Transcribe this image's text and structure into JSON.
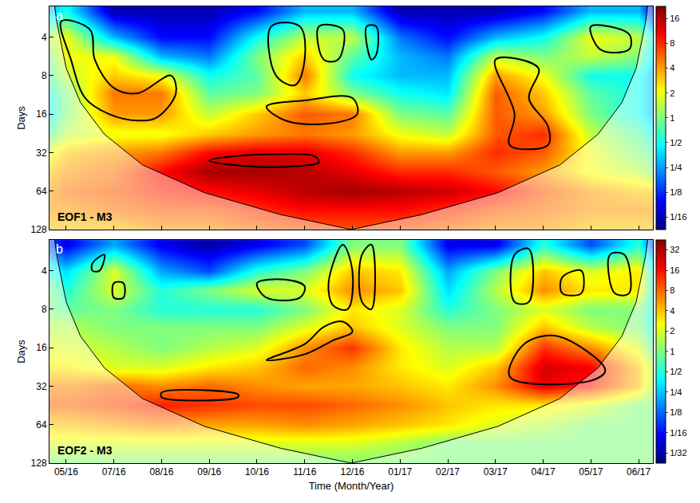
{
  "chart_data": [
    {
      "type": "heatmap",
      "panel": "a",
      "label": "EOF1 - M3",
      "y_label": "Days",
      "log": true,
      "tick_labels": "y",
      "x": [
        -0.35,
        0,
        1,
        2,
        3,
        4,
        5,
        6,
        7,
        8,
        9,
        10,
        11,
        12,
        12.3
      ],
      "y": [
        2.5,
        4,
        5.7,
        8,
        11,
        16,
        23,
        32,
        45,
        64,
        90,
        128
      ],
      "cells": [
        [
          0.3,
          0.5,
          0.06,
          0.06,
          0.06,
          0.1,
          0.3,
          0.3,
          0.06,
          0.06,
          0.06,
          0.1,
          0.3,
          0.3,
          0.1
        ],
        [
          1.5,
          2,
          0.3,
          0.1,
          0.1,
          0.5,
          1.5,
          1.5,
          0.2,
          0.1,
          0.3,
          0.5,
          2,
          1.5,
          0.5
        ],
        [
          1,
          2,
          2,
          0.3,
          0.2,
          1,
          3,
          0.8,
          0.3,
          0.2,
          1.5,
          1,
          1.5,
          1,
          0.4
        ],
        [
          0.8,
          1.5,
          3,
          2,
          0.5,
          0.8,
          5,
          0.5,
          0.3,
          0.3,
          4,
          2,
          0.5,
          0.5,
          0.3
        ],
        [
          0.6,
          1,
          5,
          5,
          0.8,
          1,
          3,
          1,
          0.5,
          0.4,
          6,
          3,
          0.8,
          0.5,
          0.3
        ],
        [
          0.5,
          1,
          4,
          4,
          1.5,
          3,
          6,
          5,
          1,
          0.8,
          6,
          4,
          1,
          0.5,
          0.3
        ],
        [
          0.8,
          1.5,
          2,
          2,
          3,
          4,
          5,
          4,
          2,
          1.5,
          6,
          8,
          1.5,
          0.8,
          0.5
        ],
        [
          2,
          3,
          4,
          5,
          10,
          12,
          12,
          8,
          4,
          4,
          8,
          6,
          2,
          1,
          0.8
        ],
        [
          3,
          4,
          5,
          10,
          18,
          18,
          16,
          12,
          8,
          8,
          6,
          4,
          2,
          1.5,
          1
        ],
        [
          4,
          5,
          6,
          8,
          10,
          12,
          16,
          18,
          16,
          14,
          10,
          6,
          4,
          3,
          3
        ],
        [
          4,
          4,
          5,
          6,
          6,
          8,
          10,
          10,
          10,
          8,
          6,
          5,
          4,
          4,
          4
        ],
        [
          3,
          3,
          3,
          4,
          4,
          5,
          6,
          6,
          6,
          5,
          4,
          4,
          3,
          3,
          3
        ]
      ],
      "xlim": [
        -0.35,
        12.3
      ],
      "xticks": [
        0,
        1,
        2,
        3,
        4,
        5,
        6,
        7,
        8,
        9,
        10,
        11,
        12
      ],
      "ylim": [
        2.3,
        128
      ],
      "yticks": [
        4,
        8,
        16,
        32,
        64,
        128
      ],
      "clim": [
        0.044,
        22.6
      ],
      "cticks": [
        {
          "value": 0.0625,
          "label": "1/16"
        },
        {
          "value": 0.125,
          "label": "1/8"
        },
        {
          "value": 0.25,
          "label": "1/4"
        },
        {
          "value": 0.5,
          "label": "1/2"
        },
        1,
        2,
        4,
        8,
        16
      ],
      "coi": {
        "x": [
          -0.24,
          -0.2,
          0,
          0.3,
          0.8,
          1.6,
          2.9,
          4.5,
          5.975,
          7.45,
          9.05,
          10.35,
          11.15,
          11.65,
          11.95,
          12.15,
          12.19
        ],
        "y": [
          2.3,
          3,
          7,
          13,
          23,
          40,
          66,
          98,
          128,
          98,
          66,
          40,
          23,
          13,
          7,
          3,
          2.3
        ]
      },
      "significance": [
        {
          "x": [
            -0.1,
            0.5,
            0.6,
            1.0,
            1.5,
            2.2,
            2.3,
            1.9,
            1.5,
            0.9,
            0.4,
            0.1
          ],
          "y": [
            3,
            3.5,
            6,
            10,
            11,
            8,
            11,
            17,
            18,
            16,
            12,
            6
          ]
        },
        {
          "x": [
            3.0,
            3.6,
            4.5,
            5.2,
            5.3,
            4.8,
            3.8
          ],
          "y": [
            37,
            34,
            33,
            34,
            38,
            41,
            41
          ]
        },
        {
          "x": [
            4.2,
            5.0,
            6.0,
            6.1,
            5.5,
            4.6
          ],
          "y": [
            14,
            12.5,
            12,
            16,
            19,
            18
          ]
        },
        {
          "x": [
            4.3,
            4.9,
            5.0,
            4.8,
            4.4
          ],
          "y": [
            3.3,
            3.3,
            6,
            9.5,
            8
          ]
        },
        {
          "x": [
            5.3,
            5.8,
            5.7,
            5.4
          ],
          "y": [
            3.3,
            3.5,
            6,
            6
          ]
        },
        {
          "x": [
            6.3,
            6.5,
            6.5,
            6.4
          ],
          "y": [
            3.3,
            3.3,
            5.5,
            6
          ]
        },
        {
          "x": [
            9.0,
            9.9,
            9.7,
            10.1,
            10.1,
            9.3,
            9.4
          ],
          "y": [
            6,
            7,
            12,
            20,
            28,
            28,
            16
          ]
        },
        {
          "x": [
            11.0,
            11.8,
            11.8,
            11.2
          ],
          "y": [
            3.3,
            3.8,
            5,
            5
          ]
        }
      ]
    },
    {
      "type": "heatmap",
      "panel": "b",
      "label": "EOF2 - M3",
      "y_label": "Days",
      "x_label": "Time (Month/Year)",
      "log": true,
      "x": [
        -0.35,
        0,
        1,
        2,
        3,
        4,
        5,
        6,
        7,
        8,
        9,
        10,
        11,
        12,
        12.3
      ],
      "y": [
        2.5,
        4,
        5.7,
        8,
        11,
        16,
        23,
        32,
        45,
        64,
        90,
        128
      ],
      "cells": [
        [
          0.1,
          0.05,
          0.2,
          0.05,
          0.03,
          0.05,
          0.1,
          1,
          1,
          0.05,
          0.05,
          0.5,
          0.1,
          0.5,
          0.1
        ],
        [
          0.5,
          0.3,
          2,
          0.2,
          0.1,
          0.5,
          1,
          4,
          3,
          0.2,
          1,
          4,
          2,
          3,
          0.5
        ],
        [
          1,
          0.5,
          2,
          0.5,
          1,
          2,
          2,
          6,
          4,
          0.3,
          1.5,
          6,
          3,
          3,
          0.5
        ],
        [
          1,
          0.8,
          1,
          0.5,
          0.5,
          0.5,
          1,
          3,
          2,
          0.5,
          1,
          2,
          1,
          1,
          0.5
        ],
        [
          1.5,
          1.5,
          1,
          1,
          1,
          1,
          2,
          4,
          2,
          1,
          1,
          4,
          1.5,
          1,
          0.5
        ],
        [
          2,
          2,
          1.5,
          1,
          1.5,
          2,
          6,
          12,
          3,
          1.5,
          1.5,
          12,
          6,
          2,
          0.8
        ],
        [
          3,
          3,
          2,
          2,
          3,
          4,
          8,
          6,
          3,
          2,
          4,
          24,
          18,
          4,
          1.5
        ],
        [
          6,
          6,
          8,
          6,
          8,
          6,
          5,
          5,
          4,
          3,
          6,
          20,
          14,
          4,
          1.5
        ],
        [
          8,
          8,
          10,
          14,
          12,
          10,
          10,
          8,
          6,
          4,
          3,
          3,
          2,
          1,
          1
        ],
        [
          4,
          4,
          5,
          6,
          5,
          5,
          6,
          5,
          4,
          3,
          2,
          1.5,
          1,
          1,
          1
        ],
        [
          2,
          2,
          2,
          2,
          2,
          2,
          2,
          2,
          1.5,
          1,
          1,
          1,
          1,
          1,
          1
        ],
        [
          1,
          1,
          1,
          1,
          1,
          1,
          1,
          1,
          1,
          1,
          1,
          1,
          1,
          1,
          1
        ]
      ],
      "xlim": [
        -0.35,
        12.3
      ],
      "xticks": [
        {
          "value": 0,
          "label": "05/16"
        },
        {
          "value": 1,
          "label": "07/16"
        },
        {
          "value": 2,
          "label": "08/16"
        },
        {
          "value": 3,
          "label": "09/16"
        },
        {
          "value": 4,
          "label": "10/16"
        },
        {
          "value": 5,
          "label": "11/16"
        },
        {
          "value": 6,
          "label": "12/16"
        },
        {
          "value": 7,
          "label": "01/17"
        },
        {
          "value": 8,
          "label": "02/17"
        },
        {
          "value": 9,
          "label": "03/17"
        },
        {
          "value": 10,
          "label": "04/17"
        },
        {
          "value": 11,
          "label": "05/17"
        },
        {
          "value": 12,
          "label": "06/17"
        }
      ],
      "ylim": [
        2.3,
        128
      ],
      "yticks": [
        4,
        8,
        16,
        32,
        64,
        128
      ],
      "clim": [
        0.022,
        45
      ],
      "cticks": [
        {
          "value": 0.03125,
          "label": "1/32"
        },
        {
          "value": 0.0625,
          "label": "1/16"
        },
        {
          "value": 0.125,
          "label": "1/8"
        },
        {
          "value": 0.25,
          "label": "1/4"
        },
        {
          "value": 0.5,
          "label": "1/2"
        },
        1,
        2,
        4,
        8,
        16,
        32
      ],
      "coi": {
        "x": [
          -0.24,
          -0.2,
          0,
          0.3,
          0.8,
          1.6,
          2.9,
          4.5,
          5.975,
          7.45,
          9.05,
          10.35,
          11.15,
          11.65,
          11.95,
          12.15,
          12.19
        ],
        "y": [
          2.3,
          3,
          7,
          13,
          23,
          40,
          66,
          98,
          128,
          98,
          66,
          40,
          23,
          13,
          7,
          3,
          2.3
        ]
      },
      "significance": [
        {
          "x": [
            0.55,
            0.8,
            0.7,
            0.55
          ],
          "y": [
            3.5,
            3,
            4,
            4
          ]
        },
        {
          "x": [
            1.0,
            1.2,
            1.2,
            1.0
          ],
          "y": [
            5,
            5,
            6.5,
            6.5
          ]
        },
        {
          "x": [
            4.0,
            4.6,
            5.0,
            4.9,
            4.2
          ],
          "y": [
            5,
            4.7,
            5.3,
            6.5,
            6.5
          ]
        },
        {
          "x": [
            5.5,
            5.8,
            6.0,
            5.9,
            5.6
          ],
          "y": [
            5,
            2.5,
            4,
            8,
            7.5
          ]
        },
        {
          "x": [
            6.2,
            6.4,
            6.4,
            6.2
          ],
          "y": [
            3,
            2.5,
            8,
            7
          ]
        },
        {
          "x": [
            4.2,
            5.0,
            5.4,
            5.8,
            6.0,
            5.6,
            5.0
          ],
          "y": [
            20,
            15,
            11,
            10,
            12,
            14,
            18
          ]
        },
        {
          "x": [
            9.3,
            9.6,
            10.3,
            11.3,
            11.0
          ],
          "y": [
            27,
            15,
            13,
            24,
            29
          ]
        },
        {
          "x": [
            9.4,
            9.7,
            9.7,
            9.4
          ],
          "y": [
            3,
            2.7,
            7,
            7
          ]
        },
        {
          "x": [
            10.4,
            10.8,
            10.8,
            10.4
          ],
          "y": [
            4.5,
            4,
            6,
            6
          ]
        },
        {
          "x": [
            11.4,
            11.7,
            11.8,
            11.5
          ],
          "y": [
            3,
            3,
            6,
            6
          ]
        },
        {
          "x": [
            2.0,
            3.6,
            3.6,
            2.0
          ],
          "y": [
            36,
            37,
            39,
            39
          ]
        }
      ]
    }
  ]
}
